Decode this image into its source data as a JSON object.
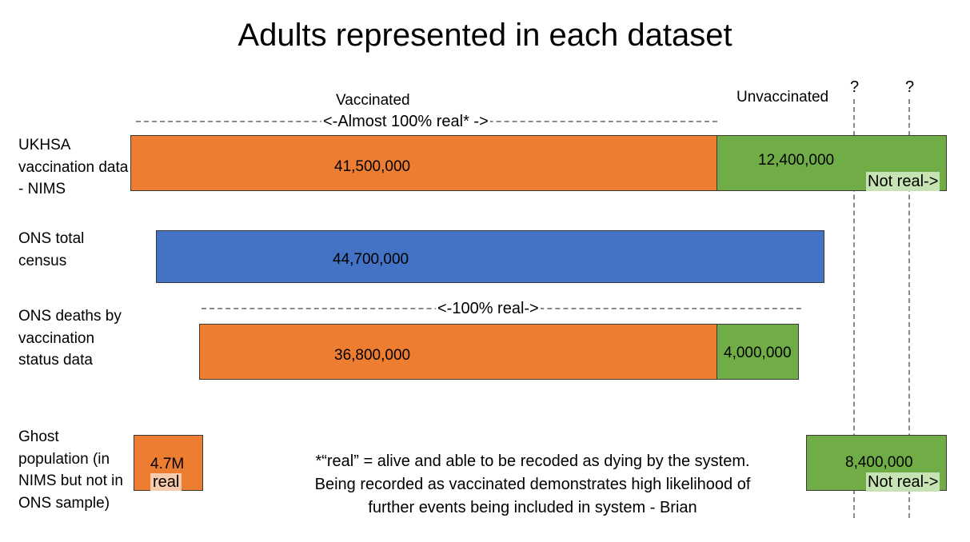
{
  "title": "Adults represented in each dataset",
  "headers": {
    "vaccinated": "Vaccinated",
    "unvaccinated": "Unvaccinated",
    "question_1": "?",
    "question_2": "?"
  },
  "annotations": {
    "almost_real": "<-Almost 100% real* ->",
    "fully_real": "<-100% real->",
    "not_real_1": "Not real->",
    "not_real_2": "Not real->",
    "ghost_real": "real"
  },
  "rows": {
    "ukhsa": {
      "label": "UKHSA vaccination data - NIMS",
      "vaccinated": "41,500,000",
      "unvaccinated": "12,400,000"
    },
    "census": {
      "label": "ONS total census",
      "total": "44,700,000"
    },
    "deaths": {
      "label": "ONS deaths by vaccination status data",
      "vaccinated": "36,800,000",
      "unvaccinated": "4,000,000"
    },
    "ghost": {
      "label": "Ghost population (in NIMS but not in ONS sample)",
      "vaccinated": "4.7M",
      "unvaccinated": "8,400,000"
    }
  },
  "footnote": {
    "line1": "*“real” = alive and able to be recoded as dying by the system.",
    "line2": "Being recorded as vaccinated demonstrates high likelihood of",
    "line3": "further events being included in system - Brian"
  },
  "colors": {
    "vaccinated": "#ed7d31",
    "unvaccinated": "#70ad47",
    "census": "#4472c4"
  }
}
